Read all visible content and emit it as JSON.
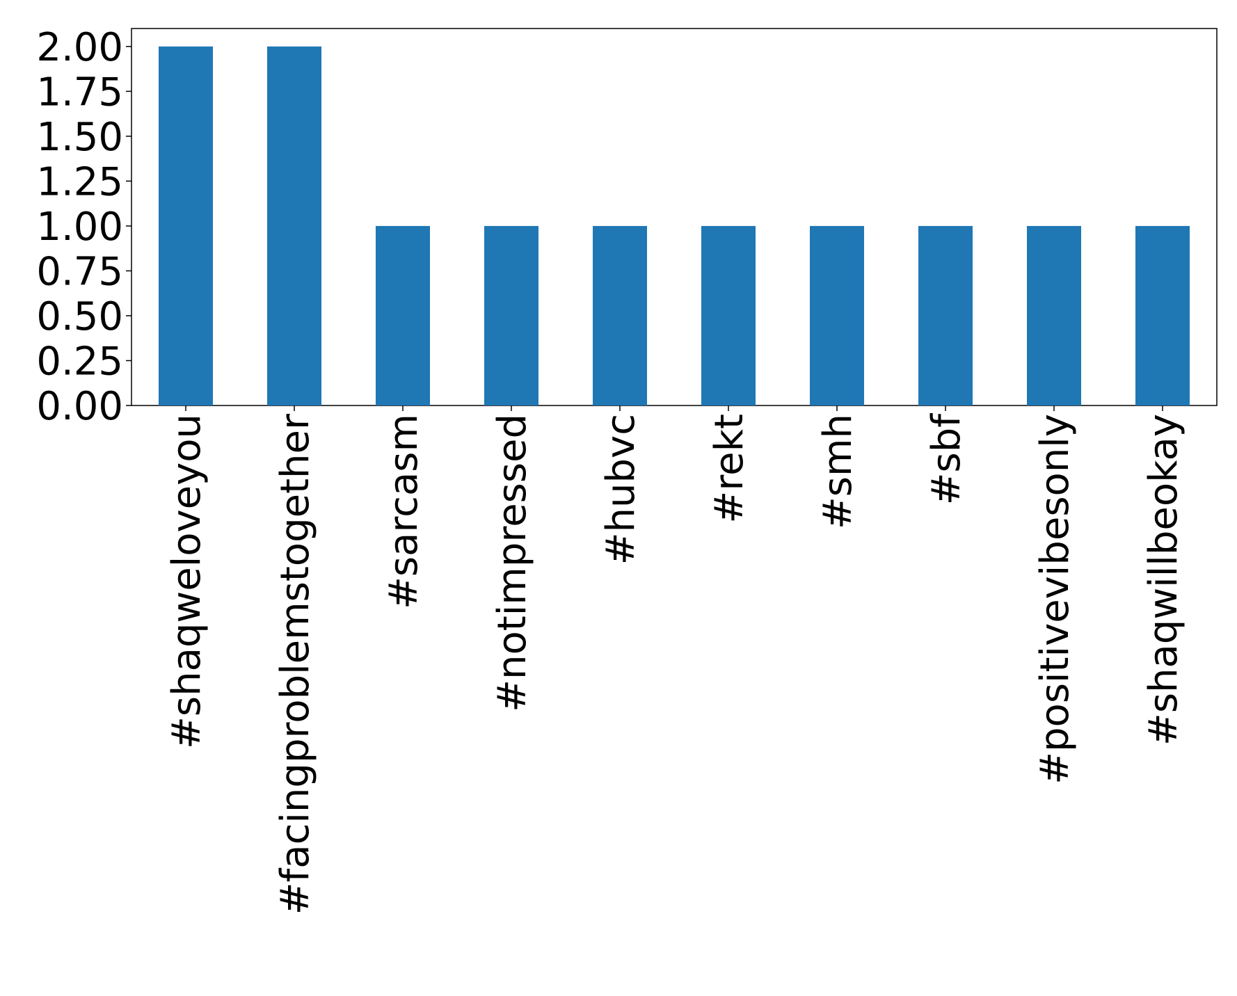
{
  "chart_data": {
    "type": "bar",
    "categories": [
      "#shaqweloveyou",
      "#facingproblemstogether",
      "#sarcasm",
      "#notimpressed",
      "#hubvc",
      "#rekt",
      "#smh",
      "#sbf",
      "#positivevibesonly",
      "#shaqwillbeokay"
    ],
    "values": [
      2,
      2,
      1,
      1,
      1,
      1,
      1,
      1,
      1,
      1
    ],
    "color": "#1f77b4",
    "ylim": [
      0,
      2.1
    ],
    "yticks": [
      {
        "value": 0,
        "label": "0.00"
      },
      {
        "value": 0.25,
        "label": "0.25"
      },
      {
        "value": 0.5,
        "label": "0.50"
      },
      {
        "value": 0.75,
        "label": "0.75"
      },
      {
        "value": 1,
        "label": "1.00"
      },
      {
        "value": 1.25,
        "label": "1.25"
      },
      {
        "value": 1.5,
        "label": "1.50"
      },
      {
        "value": 1.75,
        "label": "1.75"
      },
      {
        "value": 2,
        "label": "2.00"
      }
    ],
    "grid": false
  }
}
